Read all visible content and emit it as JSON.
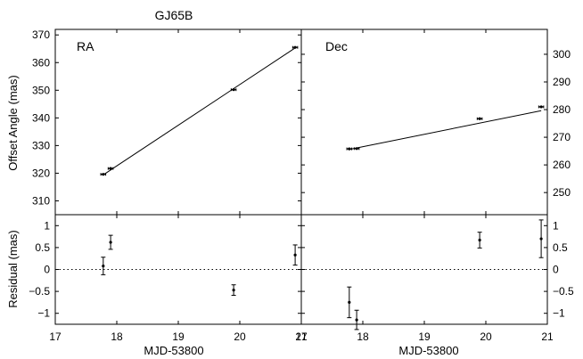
{
  "chart_data": [
    {
      "panel": "ra-top",
      "type": "scatter",
      "title": "GJ65B",
      "panel_label": "RA",
      "ylabel": "Offset Angle (mas)",
      "xlim": [
        17,
        21
      ],
      "ylim": [
        305,
        372
      ],
      "yticks": [
        310,
        320,
        330,
        340,
        350,
        360,
        370
      ],
      "points": [
        {
          "x": 17.78,
          "y": 319.6,
          "xerr": 0.04
        },
        {
          "x": 17.9,
          "y": 321.7,
          "xerr": 0.04
        },
        {
          "x": 19.9,
          "y": 350.2,
          "xerr": 0.04
        },
        {
          "x": 20.9,
          "y": 365.5,
          "xerr": 0.04
        }
      ],
      "fit_line": {
        "x": [
          17.78,
          20.9
        ],
        "y": [
          319.4,
          365.3
        ]
      }
    },
    {
      "panel": "dec-top",
      "type": "scatter",
      "panel_label": "Dec",
      "xlim": [
        17,
        21
      ],
      "ylim": [
        242,
        309
      ],
      "yticks": [
        250,
        260,
        270,
        280,
        290,
        300
      ],
      "y_axis_side": "right",
      "points": [
        {
          "x": 17.78,
          "y": 265.8,
          "xerr": 0.04
        },
        {
          "x": 17.9,
          "y": 265.9,
          "xerr": 0.04
        },
        {
          "x": 19.9,
          "y": 276.7,
          "xerr": 0.04
        },
        {
          "x": 20.9,
          "y": 281.0,
          "xerr": 0.04
        }
      ],
      "fit_line": {
        "x": [
          17.78,
          20.9
        ],
        "y": [
          265.6,
          279.6
        ]
      }
    },
    {
      "panel": "ra-residual",
      "type": "scatter",
      "xlabel": "MJD-53800",
      "ylabel": "Residual (mas)",
      "xlim": [
        17,
        21
      ],
      "ylim": [
        -1.25,
        1.25
      ],
      "xticks": [
        17,
        18,
        19,
        20,
        21
      ],
      "yticks": [
        1,
        0.5,
        0,
        -0.5,
        -1
      ],
      "zero_line": "dotted",
      "points": [
        {
          "x": 17.78,
          "y": 0.08,
          "yerr": 0.2
        },
        {
          "x": 17.9,
          "y": 0.62,
          "yerr": 0.16
        },
        {
          "x": 19.9,
          "y": -0.47,
          "yerr": 0.12
        },
        {
          "x": 20.9,
          "y": 0.33,
          "yerr": 0.23
        }
      ]
    },
    {
      "panel": "dec-residual",
      "type": "scatter",
      "xlabel": "MJD-53800",
      "xlim": [
        17,
        21
      ],
      "ylim": [
        -1.25,
        1.25
      ],
      "xticks": [
        17,
        18,
        19,
        20,
        21
      ],
      "yticks": [
        1,
        0.5,
        0,
        -0.5,
        -1
      ],
      "y_axis_side": "right",
      "zero_line": "dotted",
      "points": [
        {
          "x": 17.78,
          "y": -0.75,
          "yerr": 0.35
        },
        {
          "x": 17.9,
          "y": -1.15,
          "yerr": 0.22
        },
        {
          "x": 19.9,
          "y": 0.67,
          "yerr": 0.18
        },
        {
          "x": 20.9,
          "y": 0.7,
          "yerr": 0.43
        }
      ]
    }
  ]
}
